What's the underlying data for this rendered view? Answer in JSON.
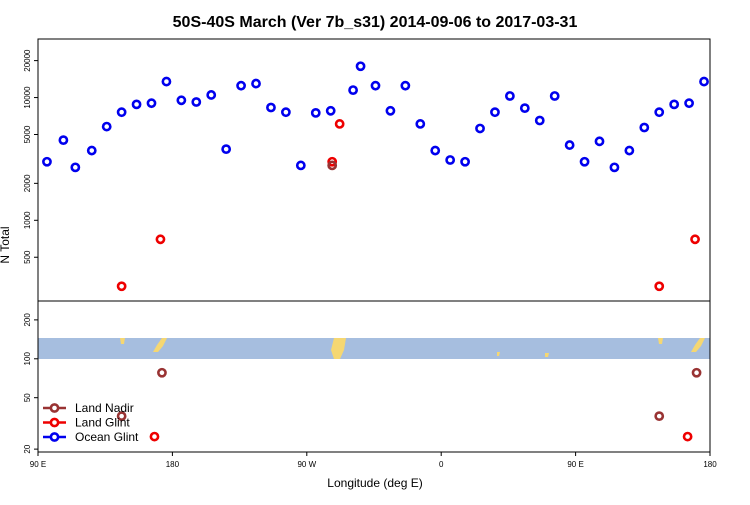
{
  "chart_data": {
    "type": "scatter",
    "title": "50S-40S March (Ver 7b_s31)   2014-09-06 to 2017-03-31",
    "xlabel": "Longitude (deg E)",
    "ylabel": "N Total",
    "x_tick_labels": [
      "90 E",
      "180",
      "90 W",
      "0",
      "90 E",
      "180"
    ],
    "x_range_cumulative_deg": [
      90,
      540
    ],
    "upper_panel": {
      "yscale": "log",
      "ylim": [
        220,
        30000
      ],
      "y_ticks": [
        "500",
        "1000",
        "2000",
        "5000",
        "10000",
        "20000"
      ],
      "series": [
        {
          "name": "Ocean Glint",
          "color": "#0000ee",
          "points": [
            [
              96,
              3000
            ],
            [
              107,
              4500
            ],
            [
              115,
              2700
            ],
            [
              126,
              3700
            ],
            [
              136,
              5800
            ],
            [
              146,
              7600
            ],
            [
              156,
              8800
            ],
            [
              166,
              9000
            ],
            [
              176,
              13500
            ],
            [
              186,
              9500
            ],
            [
              196,
              9200
            ],
            [
              206,
              10500
            ],
            [
              216,
              3800
            ],
            [
              226,
              12500
            ],
            [
              236,
              13000
            ],
            [
              246,
              8300
            ],
            [
              256,
              7600
            ],
            [
              266,
              2800
            ],
            [
              276,
              7500
            ],
            [
              286,
              7800
            ],
            [
              301,
              11500
            ],
            [
              306,
              18000
            ],
            [
              316,
              12500
            ],
            [
              326,
              7800
            ],
            [
              336,
              12500
            ],
            [
              346,
              6100
            ],
            [
              356,
              3700
            ],
            [
              366,
              3100
            ],
            [
              376,
              3000
            ],
            [
              386,
              5600
            ],
            [
              396,
              7600
            ],
            [
              406,
              10300
            ],
            [
              416,
              8200
            ],
            [
              426,
              6500
            ],
            [
              436,
              10300
            ],
            [
              446,
              4100
            ],
            [
              456,
              3000
            ],
            [
              466,
              4400
            ],
            [
              476,
              2700
            ],
            [
              486,
              3700
            ],
            [
              496,
              5700
            ],
            [
              506,
              7600
            ],
            [
              516,
              8800
            ],
            [
              526,
              9000
            ],
            [
              536,
              13500
            ]
          ]
        },
        {
          "name": "Land Glint",
          "color": "#ee0000",
          "points": [
            [
              146,
              290
            ],
            [
              172,
              700
            ],
            [
              287,
              3000
            ],
            [
              292,
              6100
            ],
            [
              506,
              290
            ],
            [
              530,
              700
            ]
          ]
        },
        {
          "name": "Land Nadir",
          "color": "#993333",
          "points": [
            [
              287,
              2800
            ]
          ]
        }
      ]
    },
    "lower_panel": {
      "yscale": "log",
      "ylim": [
        19,
        280
      ],
      "y_ticks": [
        "20",
        "50",
        "100",
        "200"
      ],
      "series": [
        {
          "name": "Land Nadir",
          "color": "#993333",
          "points": [
            [
              146,
              36
            ],
            [
              173,
              78
            ],
            [
              506,
              36
            ],
            [
              531,
              78
            ]
          ]
        },
        {
          "name": "Land Glint",
          "color": "#ee0000",
          "points": [
            [
              168,
              25
            ],
            [
              525,
              25
            ]
          ]
        }
      ]
    },
    "legend": {
      "position": "bottom-left",
      "entries": [
        {
          "name": "Land Nadir",
          "color": "#993333"
        },
        {
          "name": "Land Glint",
          "color": "#ee0000"
        },
        {
          "name": "Ocean Glint",
          "color": "#0000ee"
        }
      ]
    },
    "map_strip": {
      "ocean_color": "#a6bedf",
      "land_color": "#f5d772"
    }
  }
}
